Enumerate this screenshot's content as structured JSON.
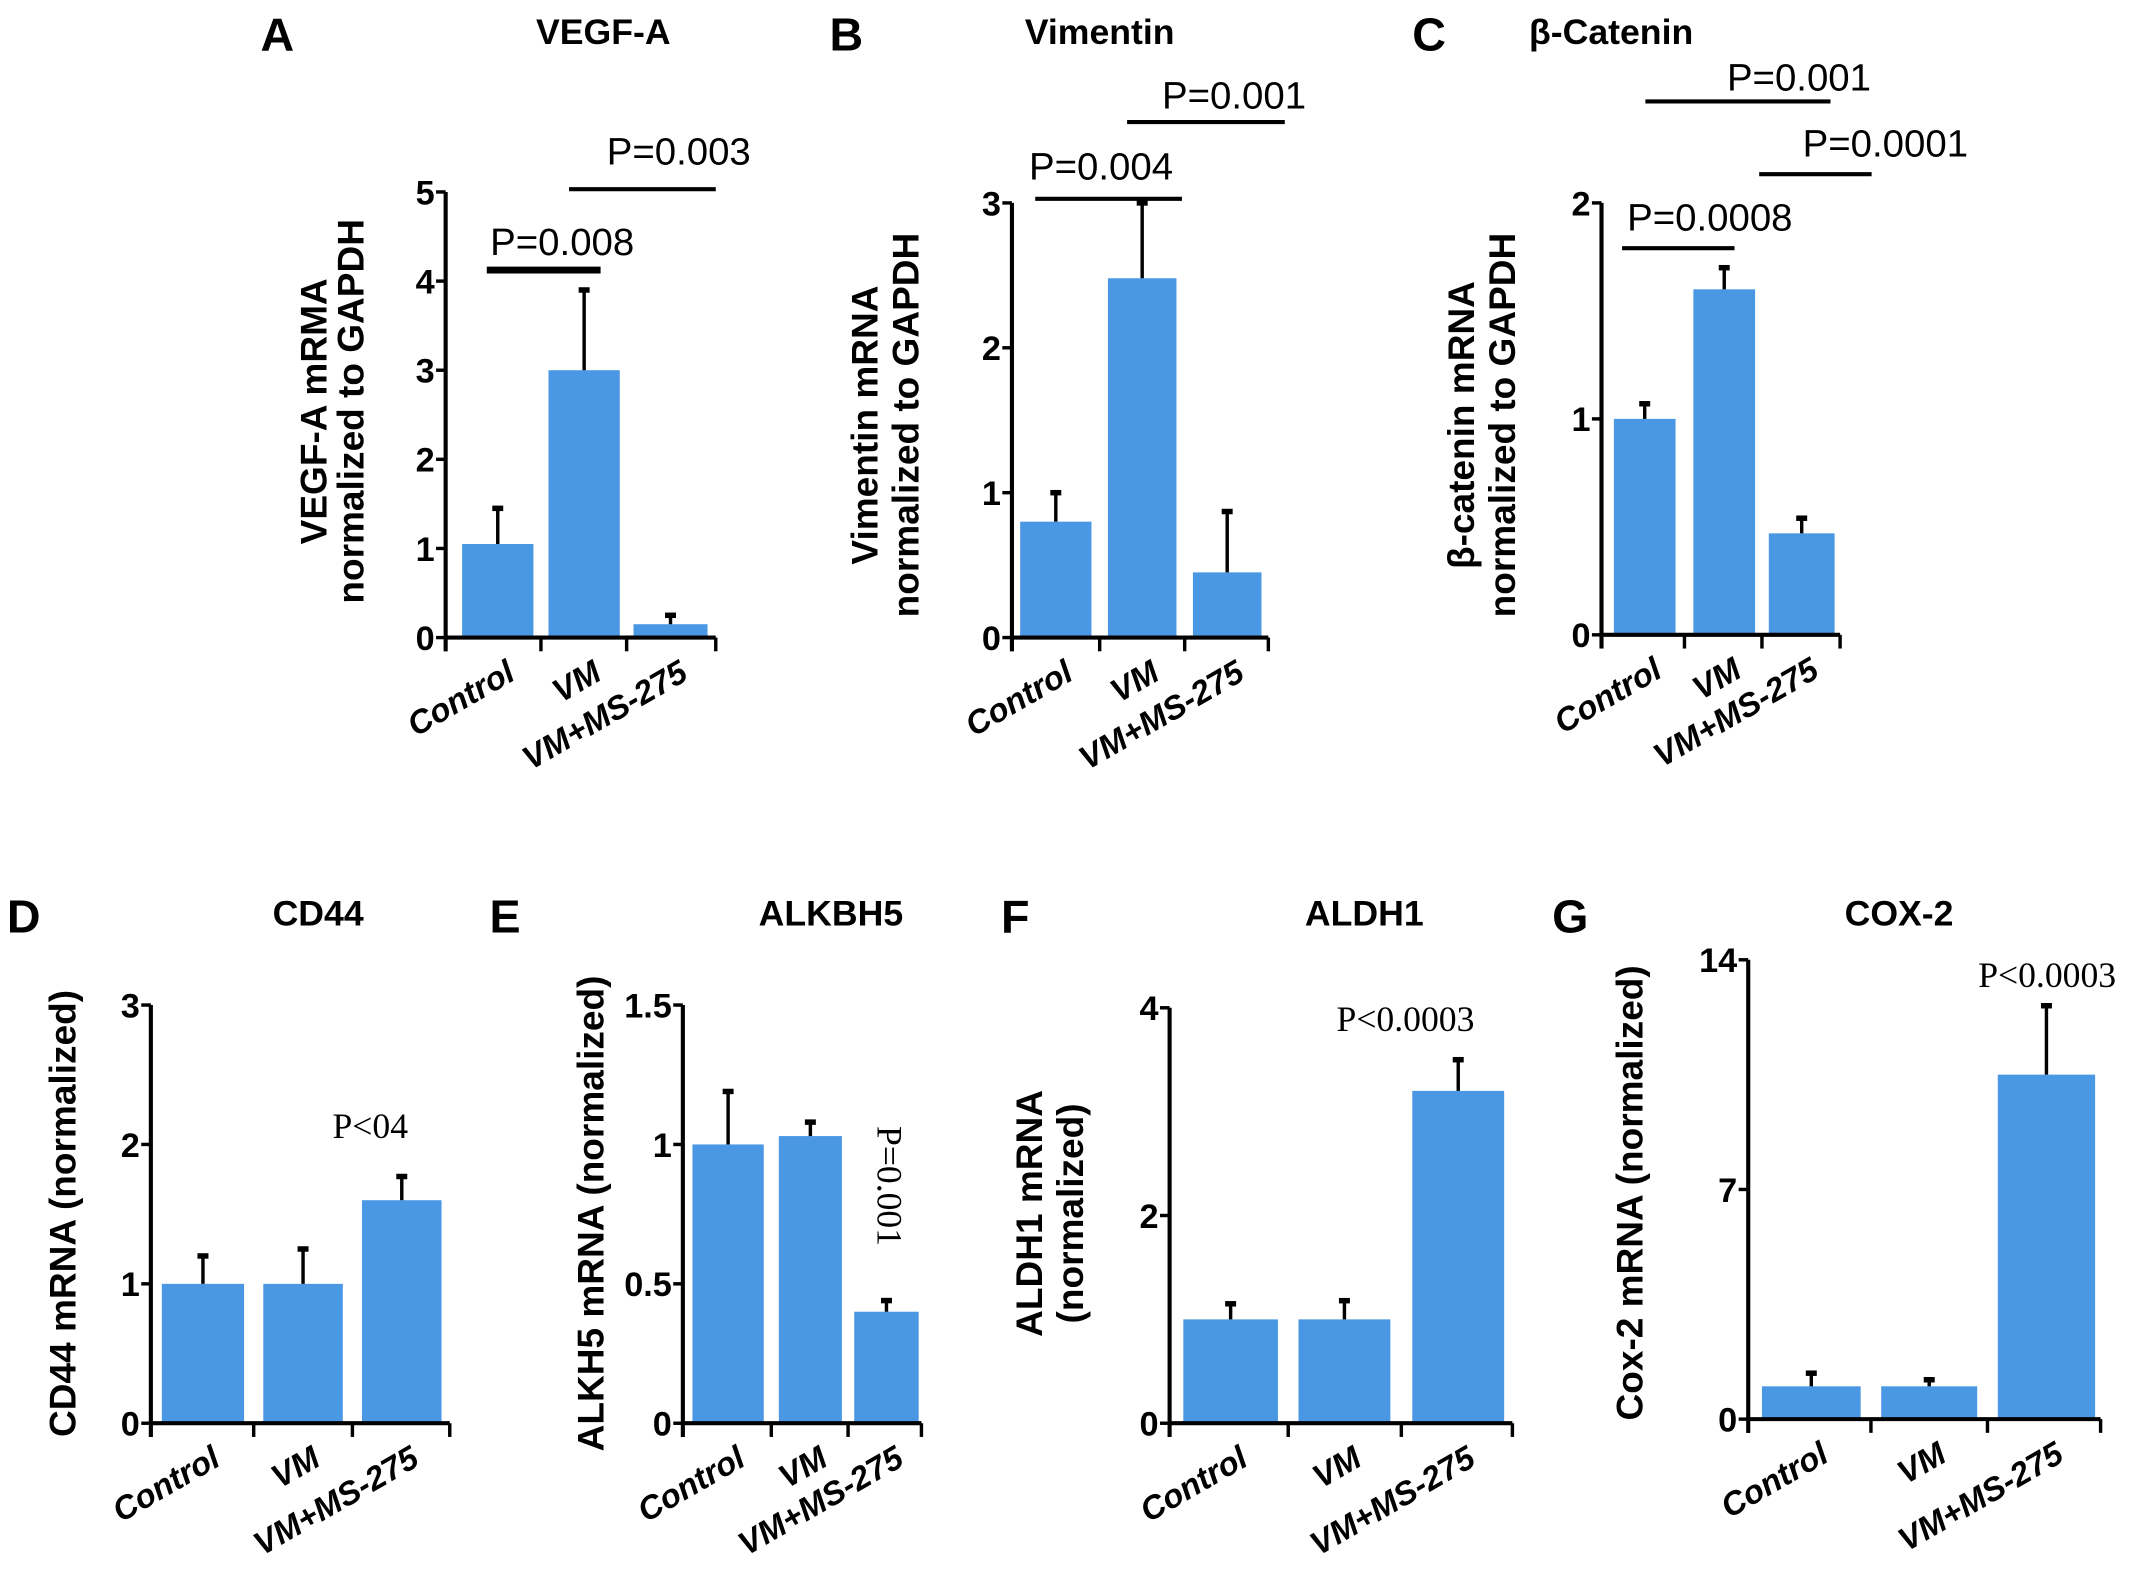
{
  "chart_data": [
    {
      "type": "bar",
      "panel": "A",
      "title": "VEGF-A",
      "ylabel": [
        "VEGF-A mRMA",
        "normalized to GAPDH"
      ],
      "categories": [
        "Control",
        "VM",
        "VM+MS-275"
      ],
      "values": [
        1.05,
        3.0,
        0.15
      ],
      "error_upper": [
        1.45,
        3.9,
        0.25
      ],
      "ylim": [
        0,
        5
      ],
      "yticks": [
        "0",
        "1",
        "2",
        "3",
        "4",
        "5"
      ],
      "bar_color": "#4a97e4",
      "annotations": [
        {
          "text": "P=0.008",
          "between": [
            0,
            1
          ]
        },
        {
          "text": "P=0.003",
          "between": [
            1,
            2
          ]
        }
      ]
    },
    {
      "type": "bar",
      "panel": "B",
      "title": "Vimentin",
      "ylabel": [
        "Vimentin mRNA",
        "normalized to GAPDH"
      ],
      "categories": [
        "Control",
        "VM",
        "VM+MS-275"
      ],
      "values": [
        0.8,
        2.48,
        0.45
      ],
      "error_upper": [
        1.0,
        3.0,
        0.87
      ],
      "ylim": [
        0,
        3
      ],
      "yticks": [
        "0",
        "1",
        "2",
        "3"
      ],
      "bar_color": "#4a97e4",
      "annotations": [
        {
          "text": "P=0.004",
          "between": [
            0,
            1
          ]
        },
        {
          "text": "P=0.001",
          "between": [
            1,
            2
          ]
        }
      ]
    },
    {
      "type": "bar",
      "panel": "C",
      "title": "β-Catenin",
      "ylabel": [
        "β-catenin mRNA",
        "normalized to GAPDH"
      ],
      "categories": [
        "Control",
        "VM",
        "VM+MS-275"
      ],
      "values": [
        1.0,
        1.6,
        0.47
      ],
      "error_upper": [
        1.07,
        1.7,
        0.54
      ],
      "ylim": [
        0,
        2
      ],
      "yticks": [
        "0",
        "1",
        "2"
      ],
      "bar_color": "#4a97e4",
      "annotations": [
        {
          "text": "P=0.0008",
          "between": [
            0,
            1
          ]
        },
        {
          "text": "P=0.001",
          "between": [
            0,
            2
          ]
        },
        {
          "text": "P=0.0001",
          "between": [
            1,
            2
          ]
        }
      ]
    },
    {
      "type": "bar",
      "panel": "D",
      "title": "CD44",
      "ylabel": [
        "CD44 mRNA (normalized)"
      ],
      "categories": [
        "Control",
        "VM",
        "VM+MS-275"
      ],
      "values": [
        1.0,
        1.0,
        1.6
      ],
      "error_upper": [
        1.2,
        1.25,
        1.77
      ],
      "ylim": [
        0,
        3
      ],
      "yticks": [
        "0",
        "1",
        "2",
        "3"
      ],
      "bar_color": "#4a97e4",
      "annotations": [
        {
          "text": "P<04"
        }
      ]
    },
    {
      "type": "bar",
      "panel": "E",
      "title": "ALKBH5",
      "ylabel": [
        "ALKH5 mRNA (normalized)"
      ],
      "categories": [
        "Control",
        "VM",
        "VM+MS-275"
      ],
      "values": [
        1.0,
        1.03,
        0.4
      ],
      "error_upper": [
        1.19,
        1.08,
        0.44
      ],
      "ylim": [
        0,
        1.5
      ],
      "yticks": [
        "0",
        "0.5",
        "1",
        "1.5"
      ],
      "bar_color": "#4a97e4",
      "annotations": [
        {
          "text": "P=0.001"
        }
      ]
    },
    {
      "type": "bar",
      "panel": "F",
      "title": "ALDH1",
      "ylabel": [
        "ALDH1 mRNA",
        "(normalized)"
      ],
      "categories": [
        "Control",
        "VM",
        "VM+MS-275"
      ],
      "values": [
        1.0,
        1.0,
        3.2
      ],
      "error_upper": [
        1.15,
        1.18,
        3.5
      ],
      "ylim": [
        0,
        4
      ],
      "yticks": [
        "0",
        "2",
        "4"
      ],
      "bar_color": "#4a97e4",
      "annotations": [
        {
          "text": "P<0.0003"
        }
      ]
    },
    {
      "type": "bar",
      "panel": "G",
      "title": "COX-2",
      "ylabel": [
        "Cox-2 mRNA (normalized)"
      ],
      "categories": [
        "Control",
        "VM",
        "VM+MS-275"
      ],
      "values": [
        1.0,
        1.0,
        10.5
      ],
      "error_upper": [
        1.4,
        1.2,
        12.6
      ],
      "ylim": [
        0,
        14
      ],
      "yticks": [
        "0",
        "7",
        "14"
      ],
      "bar_color": "#4a97e4",
      "annotations": [
        {
          "text": "P<0.0003"
        }
      ]
    }
  ]
}
